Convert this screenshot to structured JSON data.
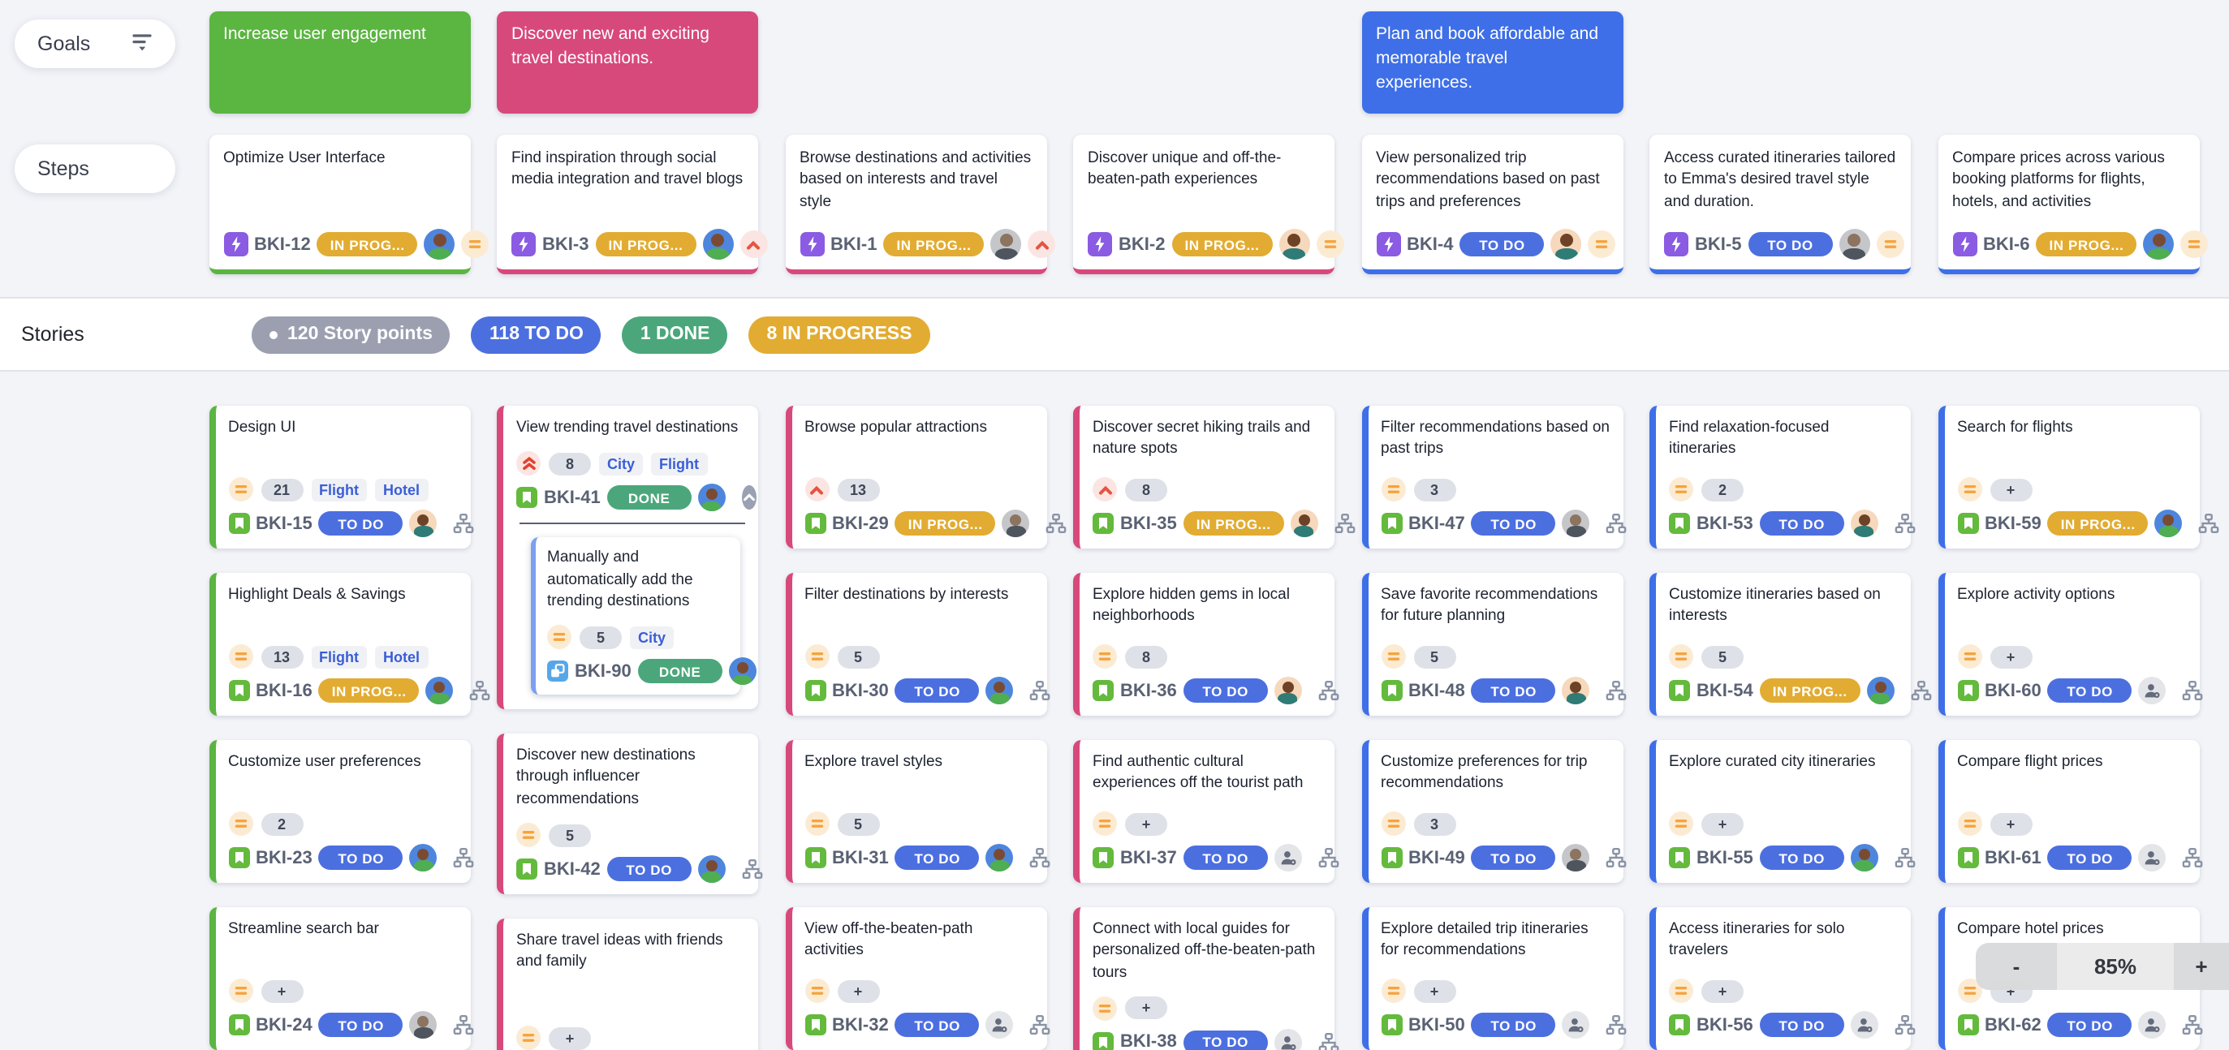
{
  "labels": {
    "goals": "Goals",
    "steps": "Steps",
    "stories": "Stories"
  },
  "colors": {
    "background": "#f3f4f8",
    "goal_green": "#5bb541",
    "goal_pink": "#d8497b",
    "goal_blue": "#3e6fe8",
    "status_todo": "#4c6fe0",
    "status_inprogress": "#e2ac32",
    "status_done": "#4ba77b",
    "epic_purple": "#8b5be3",
    "story_green": "#63ba3c",
    "subtask_blue": "#57a7e8",
    "priority_orange": "#f7a33b",
    "priority_red": "#e5543f"
  },
  "goals": [
    {
      "column": 1,
      "color": "green",
      "text": "Increase user engagement"
    },
    {
      "column": 2,
      "color": "pink",
      "text": "Discover new and exciting travel destinations."
    },
    {
      "column": 5,
      "color": "blue",
      "text": "Plan and book affordable and memorable travel experiences."
    }
  ],
  "steps": [
    {
      "column": 1,
      "key": "BKI-12",
      "title": "Optimize User Interface",
      "status": "IN PROG...",
      "avatar": "boy-blue",
      "priority": "medium",
      "strip": "green"
    },
    {
      "column": 2,
      "key": "BKI-3",
      "title": "Find inspiration through social media integration and travel blogs",
      "status": "IN PROG...",
      "avatar": "boy-blue",
      "priority": "high",
      "strip": "pink"
    },
    {
      "column": 3,
      "key": "BKI-1",
      "title": "Browse destinations and activities based on interests and travel style",
      "status": "IN PROG...",
      "avatar": "photo",
      "priority": "high",
      "strip": "pink"
    },
    {
      "column": 4,
      "key": "BKI-2",
      "title": "Discover unique and off-the-beaten-path experiences",
      "status": "IN PROG...",
      "avatar": "teal-peach",
      "priority": "medium",
      "strip": "pink"
    },
    {
      "column": 5,
      "key": "BKI-4",
      "title": "View personalized trip recommendations based on past trips and preferences",
      "status": "TO DO",
      "avatar": "teal-peach",
      "priority": "medium",
      "strip": "blue"
    },
    {
      "column": 6,
      "key": "BKI-5",
      "title": "Access curated itineraries tailored to Emma's desired travel style and duration.",
      "status": "TO DO",
      "avatar": "photo",
      "priority": "medium",
      "strip": "blue"
    },
    {
      "column": 7,
      "key": "BKI-6",
      "title": "Compare prices across various booking platforms for flights, hotels, and activities",
      "status": "IN PROG...",
      "avatar": "boy-blue",
      "priority": "medium",
      "strip": "blue"
    }
  ],
  "stories_header": {
    "points_badge": "120 Story points",
    "todo_badge": "118 TO DO",
    "done_badge": "1 DONE",
    "inprogress_badge": "8 IN PROGRESS"
  },
  "columns": [
    {
      "accent": "green",
      "cards": [
        {
          "title": "Design UI",
          "priority": "medium",
          "points": "21",
          "labels": [
            "Flight",
            "Hotel"
          ],
          "key": "BKI-15",
          "status": "TO DO",
          "avatar": "teal-peach"
        },
        {
          "title": "Highlight Deals & Savings",
          "priority": "medium",
          "points": "13",
          "labels": [
            "Flight",
            "Hotel"
          ],
          "key": "BKI-16",
          "status": "IN PROG...",
          "avatar": "boy-blue"
        },
        {
          "title": "Customize user preferences",
          "priority": "medium",
          "points": "2",
          "labels": [],
          "key": "BKI-23",
          "status": "TO DO",
          "avatar": "boy-blue"
        },
        {
          "title": "Streamline search bar",
          "priority": "medium",
          "points": "+",
          "labels": [],
          "key": "BKI-24",
          "status": "TO DO",
          "avatar": "photo"
        }
      ]
    },
    {
      "accent": "pink",
      "cards": [
        {
          "title": "View trending travel destinations",
          "priority": "highest",
          "points": "8",
          "labels": [
            "City",
            "Flight"
          ],
          "key": "BKI-41",
          "status": "DONE",
          "avatar": "boy-blue",
          "collapse": true,
          "subtask": {
            "title": "Manually and automatically add the trending destinations",
            "priority": "medium",
            "points": "5",
            "labels": [
              "City"
            ],
            "key": "BKI-90",
            "status": "DONE",
            "avatar": "boy-blue"
          }
        },
        {
          "title": "Discover new destinations through influencer recommendations",
          "priority": "medium",
          "points": "5",
          "labels": [],
          "key": "BKI-42",
          "status": "TO DO",
          "avatar": "boy-blue"
        },
        {
          "title": "Share travel ideas with friends and family",
          "priority": "medium",
          "points": "+",
          "labels": [],
          "key": "",
          "status": "",
          "avatar": ""
        }
      ]
    },
    {
      "accent": "pink",
      "cards": [
        {
          "title": "Browse popular attractions",
          "priority": "high",
          "points": "13",
          "labels": [],
          "key": "BKI-29",
          "status": "IN PROG...",
          "avatar": "photo"
        },
        {
          "title": "Filter destinations by interests",
          "priority": "medium",
          "points": "5",
          "labels": [],
          "key": "BKI-30",
          "status": "TO DO",
          "avatar": "boy-blue"
        },
        {
          "title": "Explore travel styles",
          "priority": "medium",
          "points": "5",
          "labels": [],
          "key": "BKI-31",
          "status": "TO DO",
          "avatar": "boy-blue"
        },
        {
          "title": "View off-the-beaten-path activities",
          "priority": "medium",
          "points": "+",
          "labels": [],
          "key": "BKI-32",
          "status": "TO DO",
          "avatar": "unassigned"
        }
      ]
    },
    {
      "accent": "pink",
      "cards": [
        {
          "title": "Discover secret hiking trails and nature spots",
          "priority": "high",
          "points": "8",
          "labels": [],
          "key": "BKI-35",
          "status": "IN PROG...",
          "avatar": "teal-peach"
        },
        {
          "title": "Explore hidden gems in local neighborhoods",
          "priority": "medium",
          "points": "8",
          "labels": [],
          "key": "BKI-36",
          "status": "TO DO",
          "avatar": "teal-peach"
        },
        {
          "title": "Find authentic cultural experiences off the tourist path",
          "priority": "medium",
          "points": "+",
          "labels": [],
          "key": "BKI-37",
          "status": "TO DO",
          "avatar": "unassigned"
        },
        {
          "title": "Connect with local guides for personalized off-the-beaten-path tours",
          "priority": "medium",
          "points": "+",
          "labels": [],
          "key": "BKI-38",
          "status": "TO DO",
          "avatar": "unassigned"
        }
      ]
    },
    {
      "accent": "blue",
      "cards": [
        {
          "title": "Filter recommendations based on past trips",
          "priority": "medium",
          "points": "3",
          "labels": [],
          "key": "BKI-47",
          "status": "TO DO",
          "avatar": "photo"
        },
        {
          "title": "Save favorite recommendations for future planning",
          "priority": "medium",
          "points": "5",
          "labels": [],
          "key": "BKI-48",
          "status": "TO DO",
          "avatar": "teal-peach"
        },
        {
          "title": "Customize preferences for trip recommendations",
          "priority": "medium",
          "points": "3",
          "labels": [],
          "key": "BKI-49",
          "status": "TO DO",
          "avatar": "photo"
        },
        {
          "title": "Explore detailed trip itineraries for recommendations",
          "priority": "medium",
          "points": "+",
          "labels": [],
          "key": "BKI-50",
          "status": "TO DO",
          "avatar": "unassigned"
        }
      ]
    },
    {
      "accent": "blue",
      "cards": [
        {
          "title": "Find relaxation-focused itineraries",
          "priority": "medium",
          "points": "2",
          "labels": [],
          "key": "BKI-53",
          "status": "TO DO",
          "avatar": "teal-peach"
        },
        {
          "title": "Customize itineraries based on interests",
          "priority": "medium",
          "points": "5",
          "labels": [],
          "key": "BKI-54",
          "status": "IN PROG...",
          "avatar": "boy-blue"
        },
        {
          "title": "Explore curated city itineraries",
          "priority": "medium",
          "points": "+",
          "labels": [],
          "key": "BKI-55",
          "status": "TO DO",
          "avatar": "boy-blue"
        },
        {
          "title": "Access itineraries for solo travelers",
          "priority": "medium",
          "points": "+",
          "labels": [],
          "key": "BKI-56",
          "status": "TO DO",
          "avatar": "unassigned"
        }
      ]
    },
    {
      "accent": "blue",
      "cards": [
        {
          "title": "Search for flights",
          "priority": "medium",
          "points": "+",
          "labels": [],
          "key": "BKI-59",
          "status": "IN PROG...",
          "avatar": "boy-blue"
        },
        {
          "title": "Explore activity options",
          "priority": "medium",
          "points": "+",
          "labels": [],
          "key": "BKI-60",
          "status": "TO DO",
          "avatar": "unassigned"
        },
        {
          "title": "Compare flight prices",
          "priority": "medium",
          "points": "+",
          "labels": [],
          "key": "BKI-61",
          "status": "TO DO",
          "avatar": "unassigned"
        },
        {
          "title": "Compare hotel prices",
          "priority": "medium",
          "points": "+",
          "labels": [],
          "key": "BKI-62",
          "status": "TO DO",
          "avatar": "unassigned"
        }
      ]
    }
  ],
  "zoom_control": {
    "minus": "-",
    "level": "85%",
    "plus": "+"
  }
}
